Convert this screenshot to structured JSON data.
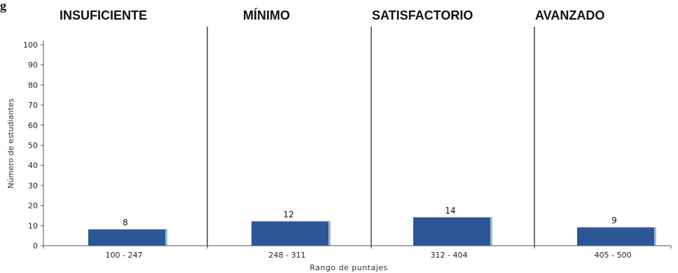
{
  "corner_text": "g",
  "colors": {
    "bar": "#2b5797",
    "bar_shadow": "#a9b9d6",
    "divider": "#444444",
    "axis": "#555555"
  },
  "chart_data": {
    "type": "bar",
    "title": "",
    "xlabel": "Rango de puntajes",
    "ylabel": "Número de estudiantes",
    "ylim": [
      0,
      100
    ],
    "yticks": [
      0,
      10,
      20,
      30,
      40,
      50,
      60,
      70,
      80,
      90,
      100
    ],
    "categories": [
      "100 - 247",
      "248 - 311",
      "312 - 404",
      "405 - 500"
    ],
    "values": [
      8,
      12,
      14,
      9
    ],
    "levels": [
      "INSUFICIENTE",
      "MÍNIMO",
      "SATISFACTORIO",
      "AVANZADO"
    ],
    "grid": false,
    "legend": "none"
  }
}
